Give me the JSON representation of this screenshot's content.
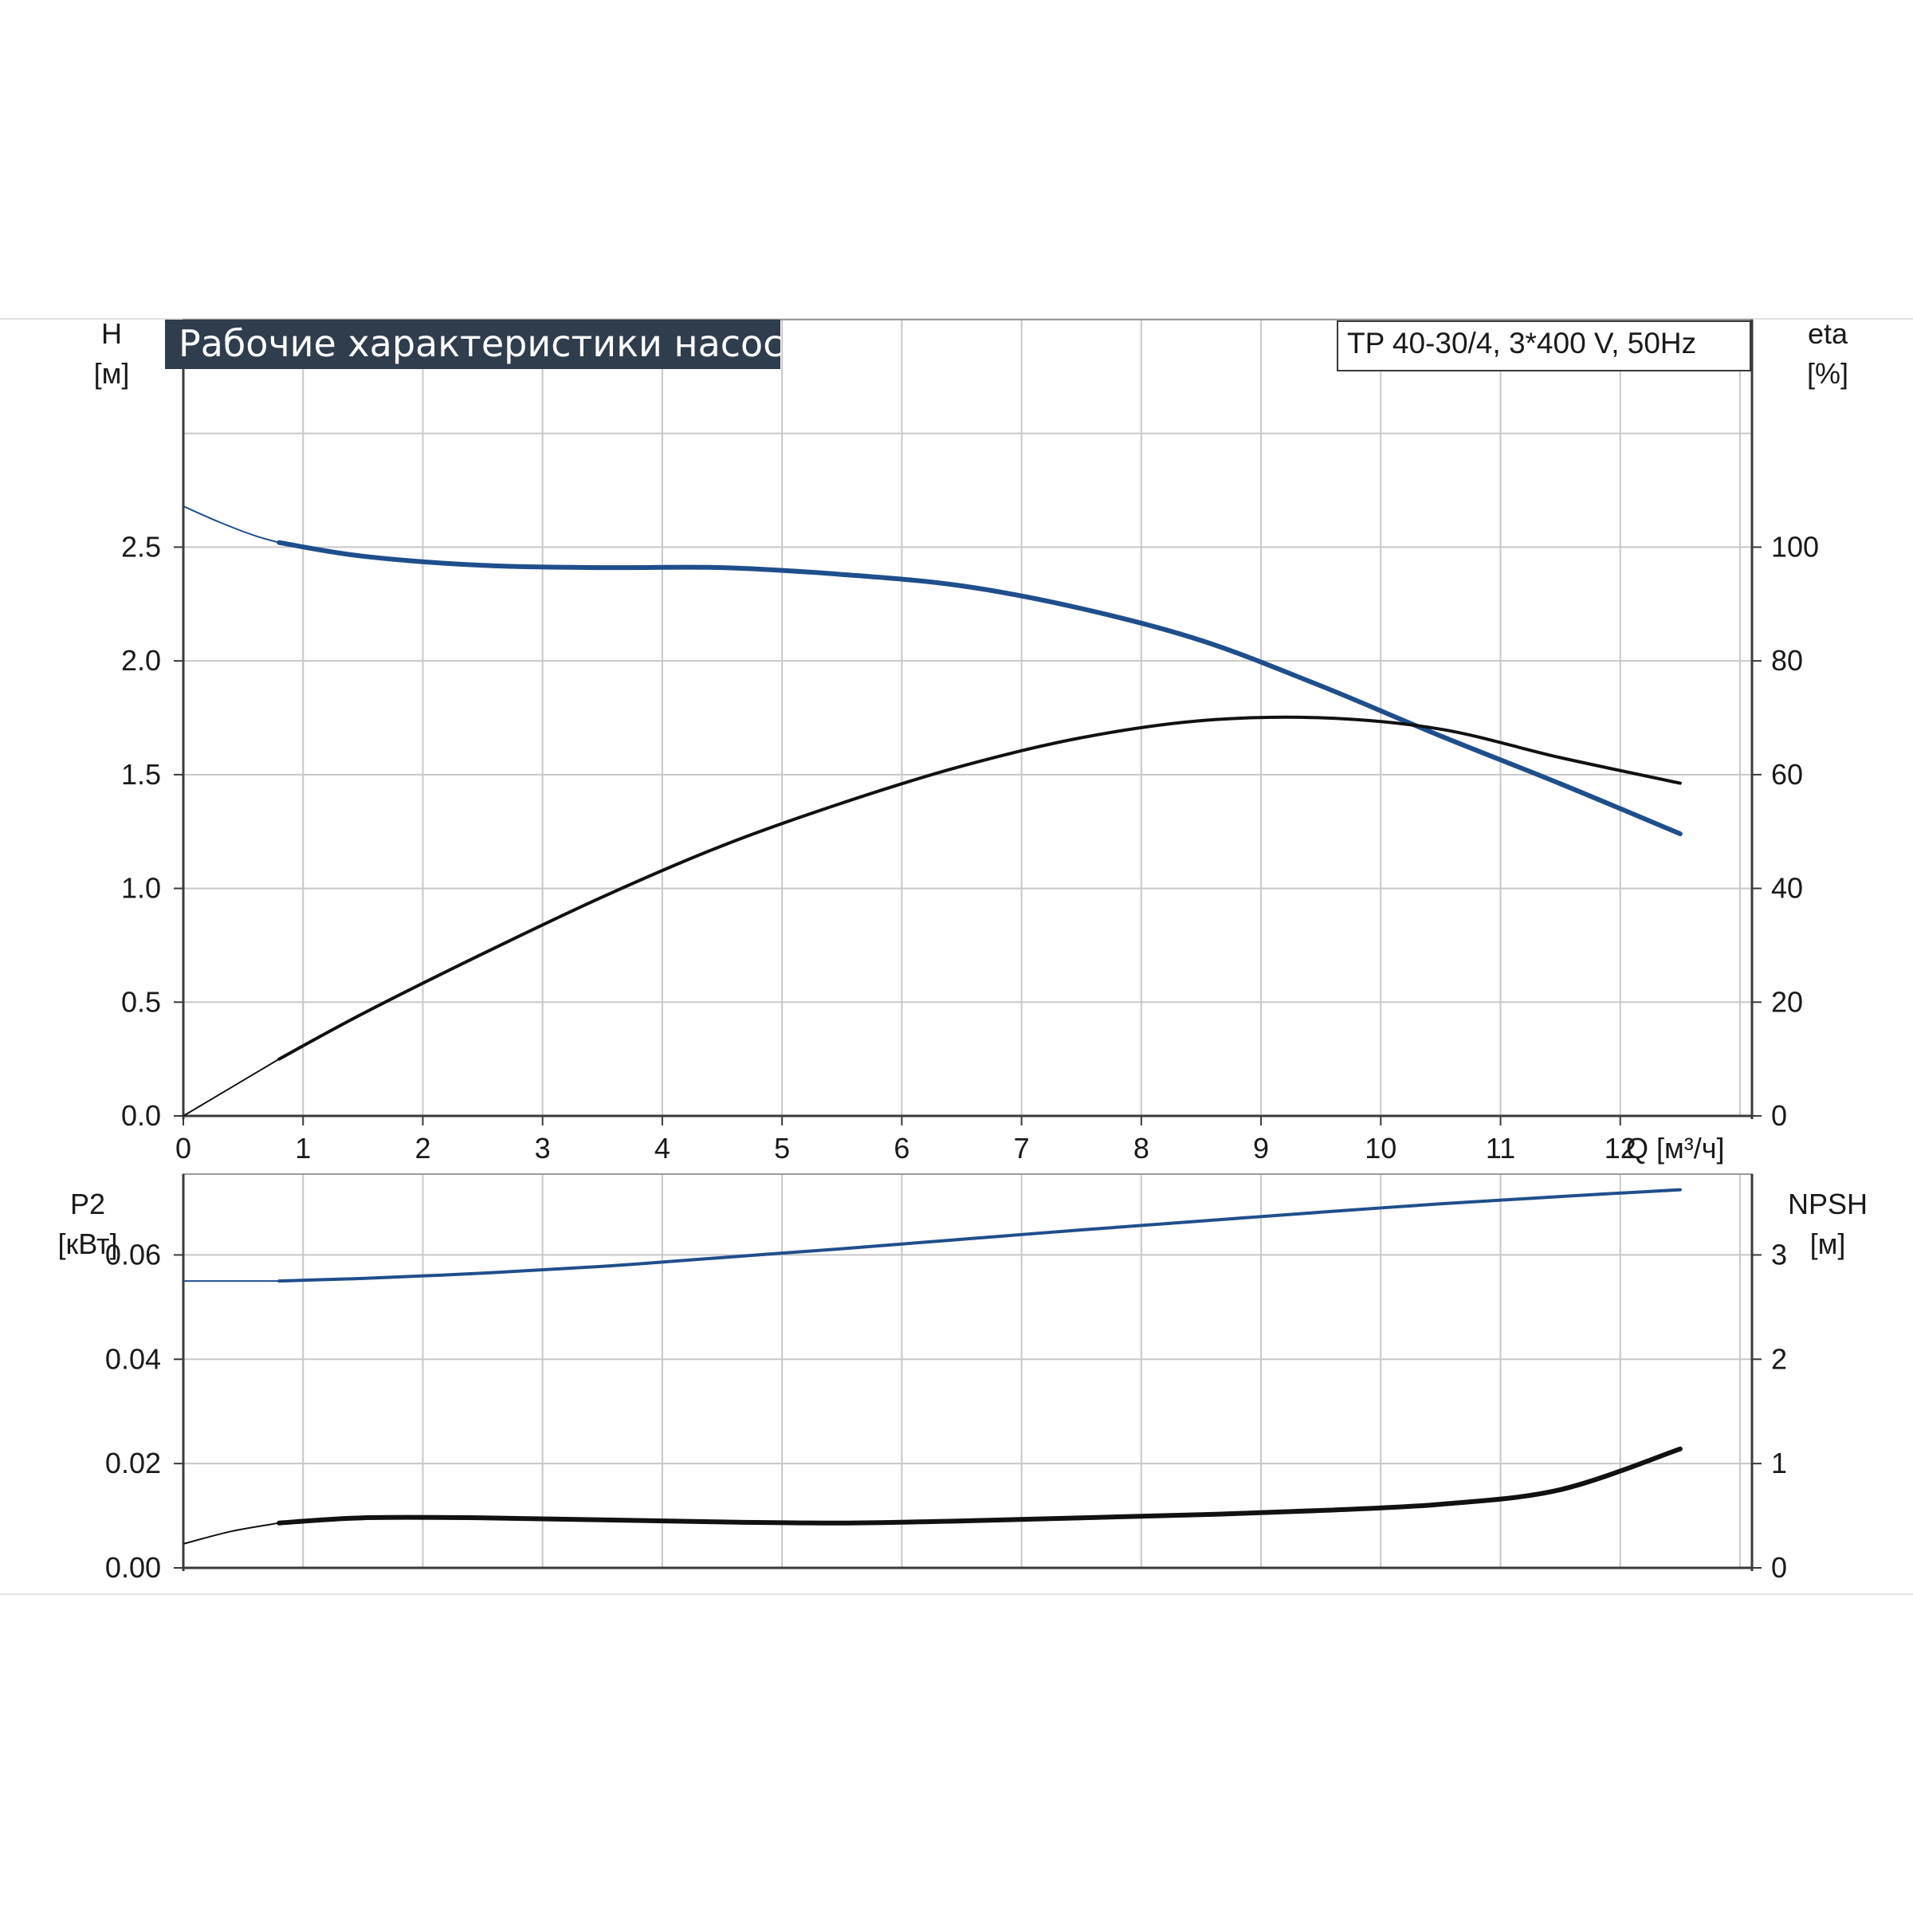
{
  "title": "Рабочие характеристики насоса",
  "model": "TP 40-30/4, 3*400 V, 50Hz",
  "colors": {
    "blue": "#1f4e8c",
    "black": "#111111",
    "title_bg": "#2f3d4d",
    "grid": "#c8c8c8"
  },
  "chart_data": [
    {
      "type": "line",
      "x_label": "Q [м³/ч]",
      "x_ticks": [
        "0",
        "1",
        "2",
        "3",
        "4",
        "5",
        "6",
        "7",
        "8",
        "9",
        "10",
        "11",
        "12"
      ],
      "xlim": [
        0,
        13.1
      ],
      "y_left_label": [
        "H",
        "[м]"
      ],
      "y_left_ticks": [
        "0.0",
        "0.5",
        "1.0",
        "1.5",
        "2.0",
        "2.5"
      ],
      "ylim_left": [
        0,
        3.5
      ],
      "y_right_label": [
        "eta",
        "[%]"
      ],
      "y_right_ticks": [
        "0",
        "20",
        "40",
        "60",
        "80",
        "100"
      ],
      "ylim_right": [
        0,
        140
      ],
      "grid": true,
      "series": [
        {
          "name": "H",
          "axis": "left",
          "color": "#1f4e8c",
          "x": [
            0.8,
            1.5,
            2.5,
            3.5,
            4.5,
            5.5,
            6.5,
            7.5,
            8.5,
            9.5,
            10.5,
            11.5,
            12.5
          ],
          "y": [
            2.52,
            2.46,
            2.42,
            2.41,
            2.41,
            2.38,
            2.33,
            2.23,
            2.09,
            1.89,
            1.67,
            1.46,
            1.24
          ],
          "extrapolated_x": [
            0,
            0.3,
            0.6,
            0.8
          ],
          "extrapolated_y": [
            2.68,
            2.61,
            2.55,
            2.52
          ]
        },
        {
          "name": "eta",
          "axis": "right",
          "color": "#111111",
          "x": [
            0.8,
            1.5,
            2.5,
            3.5,
            4.5,
            5.5,
            6.5,
            7.5,
            8.5,
            9.5,
            10.5,
            11.5,
            12.5
          ],
          "y": [
            10,
            18,
            28.5,
            38.5,
            47.5,
            55,
            61.5,
            66.5,
            69.5,
            70,
            68,
            63,
            58.5
          ],
          "extrapolated_x": [
            0,
            0.4,
            0.8
          ],
          "extrapolated_y": [
            0,
            5,
            10
          ]
        }
      ]
    },
    {
      "type": "line",
      "x_label": "",
      "xlim": [
        0,
        13.1
      ],
      "y_left_label": [
        "P2",
        "[кВт]"
      ],
      "y_left_ticks": [
        "0.00",
        "0.02",
        "0.04",
        "0.06"
      ],
      "ylim_left": [
        0,
        0.0755
      ],
      "y_right_label": [
        "NPSH",
        "[м]"
      ],
      "y_right_ticks": [
        "0",
        "1",
        "2",
        "3"
      ],
      "ylim_right": [
        0,
        3.775
      ],
      "grid": true,
      "series": [
        {
          "name": "P2",
          "axis": "left",
          "color": "#1f4e8c",
          "x": [
            0.8,
            1.5,
            2.5,
            3.5,
            4.5,
            5.5,
            6.5,
            7.5,
            8.5,
            9.5,
            10.5,
            11.5,
            12.5
          ],
          "y": [
            0.055,
            0.0555,
            0.0565,
            0.0578,
            0.0595,
            0.0612,
            0.063,
            0.0648,
            0.0665,
            0.0682,
            0.0698,
            0.0712,
            0.0725
          ],
          "extrapolated_x": [
            0,
            0.8
          ],
          "extrapolated_y": [
            0.055,
            0.055
          ]
        },
        {
          "name": "NPSH",
          "axis": "right",
          "color": "#111111",
          "x": [
            0.8,
            1.5,
            2.5,
            3.5,
            4.5,
            5.5,
            6.5,
            7.5,
            8.5,
            9.5,
            10.5,
            11.5,
            12.5
          ],
          "y": [
            0.43,
            0.48,
            0.48,
            0.46,
            0.44,
            0.43,
            0.45,
            0.48,
            0.51,
            0.55,
            0.61,
            0.75,
            1.14
          ],
          "extrapolated_x": [
            0,
            0.4,
            0.8
          ],
          "extrapolated_y": [
            0.23,
            0.35,
            0.43
          ]
        }
      ]
    }
  ]
}
